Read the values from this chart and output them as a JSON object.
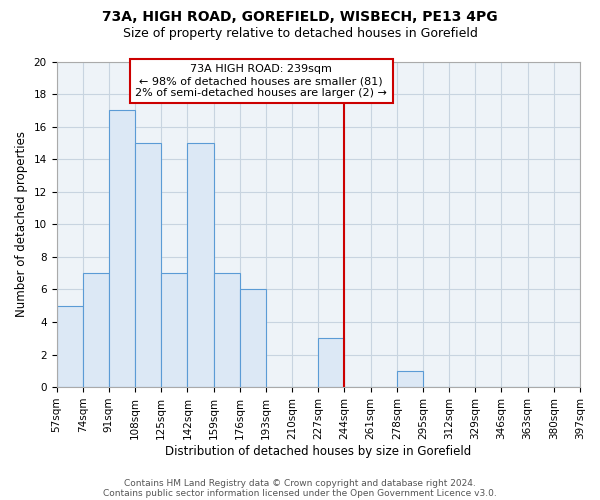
{
  "title1": "73A, HIGH ROAD, GOREFIELD, WISBECH, PE13 4PG",
  "title2": "Size of property relative to detached houses in Gorefield",
  "xlabel": "Distribution of detached houses by size in Gorefield",
  "ylabel": "Number of detached properties",
  "bin_edges": [
    57,
    74,
    91,
    108,
    125,
    142,
    159,
    176,
    193,
    210,
    227,
    244,
    261,
    278,
    295,
    312,
    329,
    346,
    363,
    380,
    397
  ],
  "bar_heights": [
    5,
    7,
    17,
    15,
    7,
    15,
    7,
    6,
    0,
    0,
    3,
    0,
    0,
    1,
    0,
    0,
    0,
    0,
    0,
    0
  ],
  "bar_color": "#dce8f5",
  "bar_edgecolor": "#5b9bd5",
  "grid_color": "#c8d4e0",
  "bg_color": "#eef3f8",
  "vline_x": 244,
  "vline_color": "#cc0000",
  "annotation_title": "73A HIGH ROAD: 239sqm",
  "annotation_line1": "← 98% of detached houses are smaller (81)",
  "annotation_line2": "2% of semi-detached houses are larger (2) →",
  "annotation_box_edgecolor": "#cc0000",
  "annotation_box_facecolor": "#ffffff",
  "ylim": [
    0,
    20
  ],
  "yticks": [
    0,
    2,
    4,
    6,
    8,
    10,
    12,
    14,
    16,
    18,
    20
  ],
  "footer1": "Contains HM Land Registry data © Crown copyright and database right 2024.",
  "footer2": "Contains public sector information licensed under the Open Government Licence v3.0.",
  "title1_fontsize": 10,
  "title2_fontsize": 9,
  "xlabel_fontsize": 8.5,
  "ylabel_fontsize": 8.5,
  "tick_fontsize": 7.5,
  "footer_fontsize": 6.5,
  "ann_fontsize": 8
}
